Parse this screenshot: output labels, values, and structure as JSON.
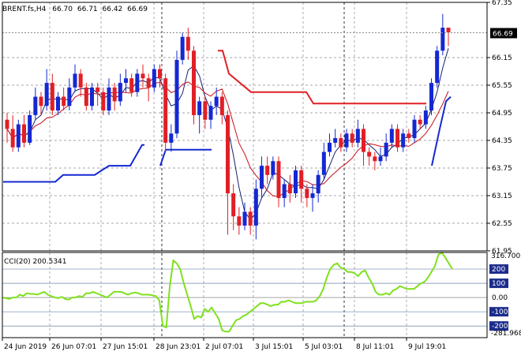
{
  "window": {
    "symbol": "BRENT.fs,H4",
    "ohlc": [
      "66.70",
      "66.71",
      "66.42",
      "66.69"
    ],
    "current_price": "66.69"
  },
  "indicator": {
    "label": "CCI(20) 200.5341",
    "max_label": "316.7007",
    "min_label": "-281.968",
    "level_labels": [
      "200",
      "100",
      "0.00",
      "-100",
      "-200"
    ],
    "levels": [
      200,
      100,
      0,
      -100,
      -200
    ]
  },
  "colors": {
    "background": "#ffffff",
    "bull_candle": "#1428d2",
    "bear_candle": "#e11f26",
    "grid": "#8a8a8a",
    "cci_line": "#7fe11d",
    "level_badge": "#1c2c8c",
    "price_badge": "#000000",
    "ma_fast": "#14206e",
    "ma_slow": "#c8101a",
    "stop_bear": "#e11f26",
    "stop_bull": "#1428d2"
  },
  "chart_data": {
    "type": "candlestick",
    "title": "BRENT.fs,H4",
    "price_axis_labels": [
      "67.35",
      "66.15",
      "65.55",
      "64.95",
      "64.35",
      "63.75",
      "63.15",
      "62.55",
      "61.95"
    ],
    "price_range": [
      61.95,
      67.35
    ],
    "time_labels": [
      "24 Jun 2019",
      "26 Jun 07:01",
      "27 Jun 15:01",
      "28 Jun 23:01",
      "2 Jul 07:01",
      "3 Jul 15:01",
      "5 Jul 03:01",
      "8 Jul 11:01",
      "9 Jul 19:01"
    ],
    "cci_range": [
      -281.968,
      316.7007
    ],
    "cci_values": [
      0,
      -5,
      -10,
      0,
      0,
      20,
      10,
      30,
      25,
      25,
      20,
      30,
      40,
      20,
      10,
      0,
      -5,
      5,
      -10,
      -15,
      0,
      0,
      10,
      5,
      30,
      30,
      40,
      30,
      20,
      10,
      0,
      20,
      40,
      40,
      40,
      30,
      20,
      30,
      35,
      30,
      20,
      20,
      20,
      15,
      10,
      -20,
      -200,
      -210,
      80,
      260,
      240,
      200,
      100,
      20,
      -60,
      -150,
      -130,
      -140,
      -80,
      -100,
      -70,
      -110,
      -150,
      -230,
      -240,
      -240,
      -200,
      -160,
      -150,
      -130,
      -120,
      -100,
      -80,
      -60,
      -40,
      -40,
      -50,
      -60,
      -50,
      -50,
      -30,
      -30,
      -20,
      -30,
      -40,
      -40,
      -40,
      -30,
      -30,
      -30,
      -20,
      10,
      60,
      140,
      200,
      230,
      240,
      210,
      200,
      180,
      180,
      170,
      150,
      180,
      190,
      140,
      100,
      40,
      20,
      20,
      30,
      20,
      50,
      60,
      80,
      70,
      60,
      60,
      60,
      80,
      100,
      110,
      140,
      180,
      220,
      300,
      316,
      280,
      240,
      200
    ]
  }
}
